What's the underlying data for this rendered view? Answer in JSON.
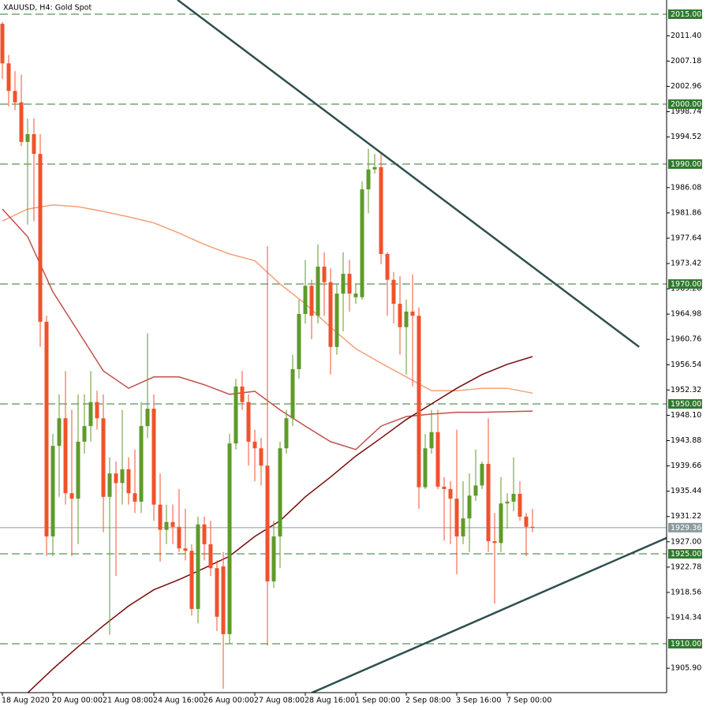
{
  "chart_data": {
    "type": "candlestick",
    "title": "XAUUSD, H4:  Gold Spot",
    "categories": [
      "18 Aug 2020",
      null,
      null,
      null,
      null,
      null,
      null,
      null,
      "20 Aug 00:00",
      null,
      null,
      null,
      null,
      null,
      null,
      null,
      "21 Aug 08:00",
      null,
      null,
      null,
      null,
      null,
      null,
      null,
      "24 Aug 16:00",
      null,
      null,
      null,
      null,
      null,
      null,
      null,
      "26 Aug 00:00",
      null,
      null,
      null,
      null,
      null,
      null,
      null,
      "27 Aug 08:00",
      null,
      null,
      null,
      null,
      null,
      null,
      null,
      "28 Aug 16:00",
      null,
      null,
      null,
      null,
      null,
      null,
      null,
      "1 Sep 00:00",
      null,
      null,
      null,
      null,
      null,
      null,
      null,
      "2 Sep 08:00",
      null,
      null,
      null,
      null,
      null,
      null,
      null,
      "3 Sep 16:00",
      null,
      null,
      null,
      null,
      null,
      null,
      null,
      "7 Sep 00:00",
      null,
      null,
      null,
      null
    ],
    "open": [
      2013.4,
      2006.8,
      2002.2,
      2000.3,
      1993.7,
      1995.0,
      1991.7,
      1963.7,
      1927.9,
      1943.0,
      1947.6,
      1935.1,
      1934.2,
      1943.7,
      1946.3,
      1950.3,
      1947.6,
      1934.5,
      1938.4,
      1936.8,
      1939.1,
      1935.1,
      1933.7,
      1946.3,
      1949.2,
      1933.2,
      1929.0,
      1930.3,
      1929.5,
      1925.9,
      1925.5,
      1915.8,
      1929.9,
      1926.6,
      1922.6,
      1922.9,
      1911.6,
      1943.4,
      1952.9,
      1950.3,
      1943.7,
      1942.6,
      1939.7,
      1920.4,
      1927.9,
      1942.6,
      1947.6,
      1955.8,
      1965.0,
      1969.7,
      1964.7,
      1972.9,
      1970.3,
      1959.5,
      1968.4,
      1971.7,
      1967.8,
      1967.8,
      1985.8,
      1989.1,
      1989.5,
      1975.0,
      1970.7,
      1966.7,
      1962.8,
      1965.4,
      1964.7,
      1936.1,
      1942.6,
      1945.3,
      1936.2,
      1935.8,
      1934.2,
      1927.9,
      1930.9,
      1934.7,
      1936.4,
      1940.0,
      1927.1,
      1926.8,
      1933.4,
      1933.7,
      1935.0,
      1931.2,
      1929.5
    ],
    "high": [
      2013.7,
      2008.2,
      2005.5,
      2004.9,
      1997.6,
      1997.6,
      1995.0,
      1964.7,
      1945.0,
      1951.6,
      1955.5,
      1949.0,
      1951.6,
      1951.6,
      1955.5,
      1952.2,
      1951.6,
      1941.1,
      1940.4,
      1949.0,
      1941.1,
      1942.4,
      1950.3,
      1961.8,
      1951.6,
      1938.4,
      1933.2,
      1933.2,
      1935.8,
      1932.5,
      1926.6,
      1931.2,
      1931.2,
      1930.5,
      1923.9,
      1925.3,
      1945.0,
      1954.2,
      1955.5,
      1951.6,
      1945.7,
      1944.3,
      1976.3,
      1930.5,
      1943.7,
      1949.0,
      1958.2,
      1967.4,
      1974.0,
      1970.7,
      1976.6,
      1975.3,
      1972.6,
      1970.0,
      1975.3,
      1974.0,
      1970.0,
      1987.1,
      1992.6,
      1991.7,
      1991.7,
      1975.3,
      1972.0,
      1971.3,
      1967.4,
      1971.6,
      1966.1,
      1945.0,
      1949.0,
      1949.0,
      1937.8,
      1937.1,
      1945.7,
      1937.1,
      1938.4,
      1942.4,
      1940.4,
      1947.6,
      1931.8,
      1937.8,
      1935.1,
      1941.1,
      1937.1,
      1931.8,
      1932.5
    ],
    "low": [
      2004.2,
      1999.6,
      1999.0,
      1993.0,
      1979.9,
      1980.5,
      1959.5,
      1924.6,
      1924.6,
      1934.5,
      1933.2,
      1924.6,
      1926.6,
      1941.7,
      1943.7,
      1945.7,
      1928.6,
      1911.5,
      1921.3,
      1933.2,
      1933.2,
      1931.8,
      1931.8,
      1944.3,
      1930.5,
      1923.7,
      1926.6,
      1926.6,
      1925.3,
      1923.9,
      1914.7,
      1913.4,
      1923.9,
      1921.3,
      1912.1,
      1902.5,
      1910.1,
      1942.4,
      1949.0,
      1939.7,
      1937.1,
      1936.4,
      1909.7,
      1919.3,
      1922.6,
      1941.7,
      1946.3,
      1954.2,
      1963.4,
      1960.8,
      1963.4,
      1964.7,
      1954.9,
      1958.2,
      1962.1,
      1965.4,
      1966.7,
      1967.4,
      1981.8,
      1988.4,
      1973.3,
      1964.7,
      1963.4,
      1958.2,
      1954.9,
      1952.9,
      1932.5,
      1935.8,
      1941.7,
      1935.8,
      1927.2,
      1926.6,
      1921.6,
      1926.6,
      1925.3,
      1933.8,
      1935.8,
      1925.3,
      1916.7,
      1925.3,
      1929.2,
      1932.1,
      1930.5,
      1924.6,
      1928.6
    ],
    "close": [
      2006.8,
      2002.2,
      2000.3,
      1993.7,
      1995.0,
      1991.7,
      1963.7,
      1927.9,
      1943.0,
      1947.6,
      1935.1,
      1934.2,
      1943.7,
      1946.3,
      1950.3,
      1947.6,
      1934.5,
      1938.4,
      1936.8,
      1939.1,
      1935.1,
      1933.7,
      1946.3,
      1949.2,
      1933.2,
      1929.0,
      1930.3,
      1929.5,
      1925.9,
      1925.5,
      1915.8,
      1929.9,
      1926.6,
      1922.6,
      1914.5,
      1911.6,
      1943.4,
      1952.9,
      1950.3,
      1943.7,
      1942.6,
      1939.7,
      1920.4,
      1927.9,
      1942.6,
      1947.6,
      1955.8,
      1965.0,
      1969.7,
      1964.7,
      1972.9,
      1970.3,
      1959.5,
      1968.4,
      1971.7,
      1968.4,
      1968.4,
      1985.8,
      1989.1,
      1989.5,
      1975.0,
      1970.7,
      1966.7,
      1962.8,
      1965.4,
      1964.7,
      1936.1,
      1942.6,
      1945.3,
      1936.2,
      1935.8,
      1934.2,
      1927.9,
      1930.9,
      1934.7,
      1936.4,
      1940.0,
      1927.1,
      1926.8,
      1933.4,
      1933.7,
      1935.0,
      1931.2,
      1929.5,
      1929.36
    ],
    "up_color": "#5f9a2a",
    "down_color": "#f0522c",
    "indicators": [
      {
        "color": "#f7a07a",
        "x": [
          0,
          4,
          8,
          12,
          16,
          20,
          24,
          28,
          32,
          36,
          40,
          44,
          48,
          52,
          56,
          60,
          64,
          68,
          72,
          76,
          80,
          84
        ],
        "values": [
          1980.5,
          1982.5,
          1983.2,
          1982.9,
          1982.1,
          1981.2,
          1980.2,
          1978.5,
          1976.6,
          1975.0,
          1973.9,
          1970.0,
          1966.7,
          1962.8,
          1959.2,
          1956.8,
          1954.5,
          1952.2,
          1952.2,
          1952.6,
          1952.6,
          1951.8
        ]
      },
      {
        "color": "#c0504d",
        "x": [
          0,
          4,
          8,
          12,
          16,
          20,
          24,
          28,
          32,
          36,
          40,
          44,
          48,
          52,
          56,
          60,
          64,
          68,
          72,
          76,
          80,
          84
        ],
        "values": [
          1982.5,
          1977.9,
          1968.7,
          1962.1,
          1955.5,
          1952.6,
          1954.5,
          1954.5,
          1953.2,
          1951.6,
          1952.1,
          1949.0,
          1946.3,
          1943.7,
          1942.4,
          1946.3,
          1947.9,
          1948.3,
          1948.6,
          1948.6,
          1948.7,
          1948.8
        ]
      },
      {
        "color": "#7a0a0a",
        "x": [
          4,
          8,
          12,
          16,
          20,
          24,
          28,
          32,
          36,
          40,
          44,
          48,
          52,
          56,
          60,
          64,
          68,
          72,
          76,
          80,
          84
        ],
        "values": [
          1901.8,
          1905.8,
          1909.5,
          1913.0,
          1916.3,
          1919.0,
          1920.7,
          1922.6,
          1924.6,
          1927.9,
          1930.5,
          1934.5,
          1937.8,
          1941.3,
          1944.3,
          1947.4,
          1950.0,
          1952.6,
          1954.9,
          1956.6,
          1957.9
        ]
      }
    ],
    "trendlines": [
      {
        "color": "#2f4f4f",
        "x": [
          27.75,
          100.9
        ],
        "values": [
          2017.4,
          1959.5
        ]
      },
      {
        "color": "#2f4f4f",
        "x": [
          49,
          112.1
        ],
        "values": [
          1901.8,
          1930.8
        ]
      }
    ],
    "levels": [
      {
        "value": 2015,
        "label": "2015.00"
      },
      {
        "value": 2000,
        "label": "2000.00"
      },
      {
        "value": 1990,
        "label": "1990.00"
      },
      {
        "value": 1970,
        "label": "1970.00"
      },
      {
        "value": 1950,
        "label": "1950.00"
      },
      {
        "value": 1925,
        "label": "1925.00"
      },
      {
        "value": 1910,
        "label": "1910.00"
      }
    ],
    "level_color": "#2f7a2f",
    "last_price": 1929.36,
    "last_price_color": "#8d9ba0",
    "ylim": [
      1901.84,
      2017.37
    ],
    "yticks": [
      {
        "value": 2011.4,
        "label": "2011.40"
      },
      2007.18,
      2002.96,
      1998.74,
      1994.52,
      1986.08,
      1981.86,
      1977.64,
      1973.42,
      {
        "value": 1969.2,
        "label": "1969.20"
      },
      1964.98,
      1960.76,
      1956.54,
      1952.32,
      {
        "value": 1948.1,
        "label": "1948.10"
      },
      1943.88,
      1939.66,
      1935.44,
      1931.22,
      {
        "value": 1927,
        "label": "1927.00"
      },
      1922.78,
      1918.56,
      1914.34,
      {
        "value": 1905.9,
        "label": "1905.90"
      }
    ]
  }
}
